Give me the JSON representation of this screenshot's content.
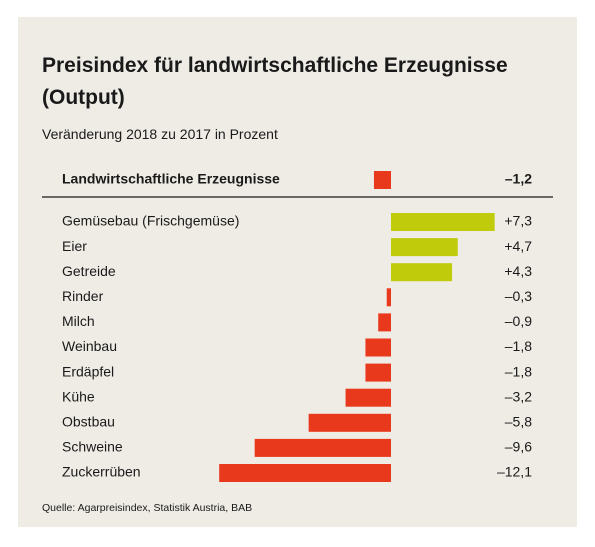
{
  "chart_data": {
    "type": "bar",
    "orientation": "horizontal",
    "title": "Preisindex für landwirtschaftliche Erzeugnisse (Output)",
    "subtitle": "Veränderung 2018 zu 2017 in Prozent",
    "total": {
      "label": "Landwirtschaftliche Erzeugnisse",
      "value": -1.2,
      "value_label": "–1,2"
    },
    "categories": [
      "Gemüsebau (Frischgemüse)",
      "Eier",
      "Getreide",
      "Rinder",
      "Milch",
      "Weinbau",
      "Erdäpfel",
      "Kühe",
      "Obstbau",
      "Schweine",
      "Zuckerrüben"
    ],
    "values": [
      7.3,
      4.7,
      4.3,
      -0.3,
      -0.9,
      -1.8,
      -1.8,
      -3.2,
      -5.8,
      -9.6,
      -12.1
    ],
    "value_labels": [
      "+7,3",
      "+4,7",
      "+4,3",
      "–0,3",
      "–0,9",
      "–1,8",
      "–1,8",
      "–3,2",
      "–5,8",
      "–9,6",
      "–12,1"
    ],
    "positive_color": "#bfcb0b",
    "negative_color": "#e8391d",
    "source": "Quelle: Agarpreisindex, Statistik Austria, BAB"
  }
}
